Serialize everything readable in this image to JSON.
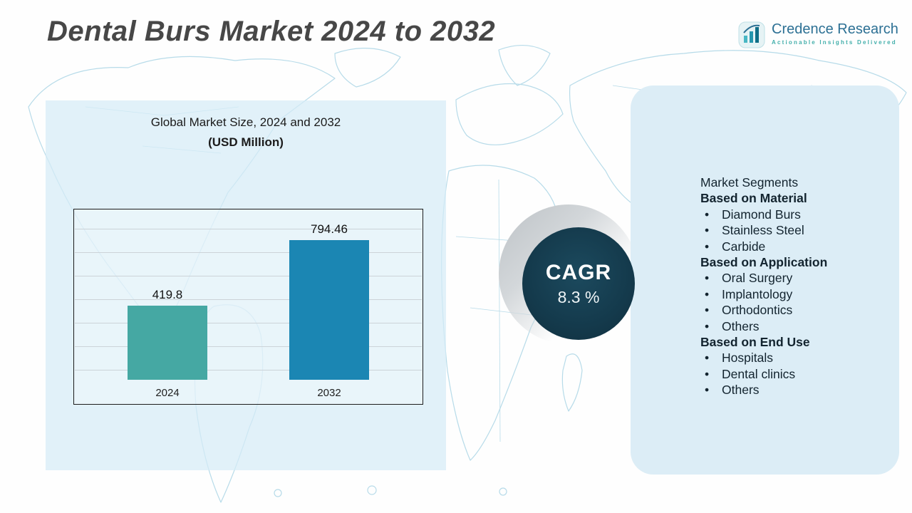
{
  "header": {
    "title": "Dental Burs Market 2024 to 2032",
    "logo": {
      "name": "Credence Research",
      "tagline": "Actionable Insights Delivered"
    }
  },
  "market_size_panel": {
    "heading_line1": "Global Market Size, 2024 and 2032",
    "heading_line2": "(USD Million)"
  },
  "chart_data": {
    "type": "bar",
    "title": "Global Market Size, 2024 and 2032 (USD Million)",
    "unit": "USD Million",
    "categories": [
      "2024",
      "2032"
    ],
    "values": [
      419.8,
      794.46
    ],
    "value_labels": [
      "419.8",
      "794.46"
    ],
    "bar_colors": [
      "#45a8a3",
      "#1b86b3"
    ],
    "ylim": [
      0,
      900
    ],
    "grid": true,
    "legend": "none"
  },
  "cagr_badge": {
    "label": "CAGR",
    "value": "8.3 %"
  },
  "segments_panel": {
    "title": "Market Segments",
    "groups": [
      {
        "heading": "Based on Material",
        "items": [
          "Diamond Burs",
          "Stainless Steel",
          "Carbide"
        ]
      },
      {
        "heading": "Based on Application",
        "items": [
          "Oral Surgery",
          "Implantology",
          "Orthodontics",
          "Others"
        ]
      },
      {
        "heading": "Based on End Use",
        "items": [
          "Hospitals",
          "Dental clinics",
          "Others"
        ]
      }
    ]
  },
  "colors": {
    "left_panel_bg": "#d6ecf6",
    "right_panel_bg": "#dcedf6",
    "map_stroke": "#b7dbe9",
    "cagr_circle": "#143a4c",
    "title_text": "#474747",
    "logo_blue": "#2c7094",
    "logo_teal": "#43afab"
  }
}
